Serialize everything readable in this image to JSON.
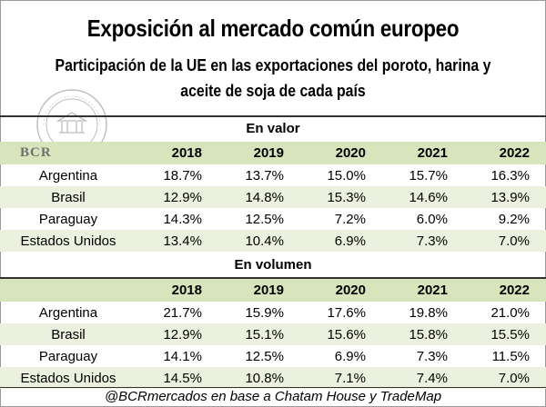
{
  "title": "Exposición al mercado común europeo",
  "subtitle_line1": "Participación de la UE en las exportaciones del poroto, harina y",
  "subtitle_line2": "aceite de soja de cada país",
  "logo_text": "BCR",
  "sections": [
    {
      "label": "En valor",
      "years": [
        "2018",
        "2019",
        "2020",
        "2021",
        "2022"
      ],
      "rows": [
        {
          "country": "Argentina",
          "values": [
            "18.7%",
            "13.7%",
            "15.0%",
            "15.7%",
            "16.3%"
          ]
        },
        {
          "country": "Brasil",
          "values": [
            "12.9%",
            "14.8%",
            "15.3%",
            "14.6%",
            "13.9%"
          ]
        },
        {
          "country": "Paraguay",
          "values": [
            "14.3%",
            "12.5%",
            "7.2%",
            "6.0%",
            "9.2%"
          ]
        },
        {
          "country": "Estados Unidos",
          "values": [
            "13.4%",
            "10.4%",
            "6.9%",
            "7.3%",
            "7.0%"
          ]
        }
      ]
    },
    {
      "label": "En volumen",
      "years": [
        "2018",
        "2019",
        "2020",
        "2021",
        "2022"
      ],
      "rows": [
        {
          "country": "Argentina",
          "values": [
            "21.7%",
            "15.9%",
            "17.6%",
            "19.8%",
            "21.0%"
          ]
        },
        {
          "country": "Brasil",
          "values": [
            "12.9%",
            "15.1%",
            "15.6%",
            "15.8%",
            "15.5%"
          ]
        },
        {
          "country": "Paraguay",
          "values": [
            "14.1%",
            "12.5%",
            "6.9%",
            "7.3%",
            "11.5%"
          ]
        },
        {
          "country": "Estados Unidos",
          "values": [
            "14.5%",
            "10.8%",
            "7.1%",
            "7.4%",
            "7.0%"
          ]
        }
      ]
    }
  ],
  "footer": "@BCRmercados en base a Chatam House y TradeMap",
  "colors": {
    "header_green": "#d8e4bc",
    "row_green": "#ebf1de"
  }
}
